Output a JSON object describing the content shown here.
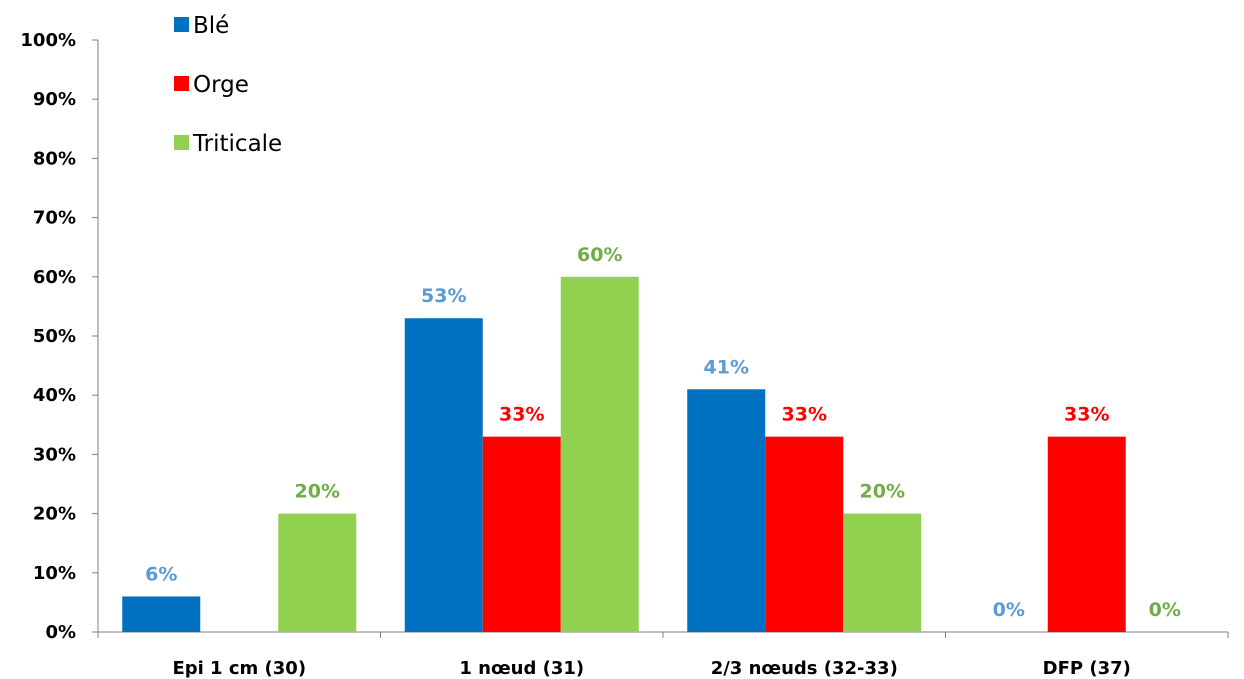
{
  "chart_data": {
    "type": "bar",
    "categories": [
      "Epi 1 cm (30)",
      "1 nœud (31)",
      "2/3 nœuds (32-33)",
      "DFP (37)"
    ],
    "series": [
      {
        "name": "Blé",
        "color": "#0070C0",
        "label_color": "#5B9BD5",
        "values": [
          6,
          53,
          41,
          0
        ],
        "labels": [
          "6%",
          "53%",
          "41%",
          "0%"
        ]
      },
      {
        "name": "Orge",
        "color": "#FF0000",
        "label_color": "#FF0000",
        "values": [
          0,
          33,
          33,
          33
        ],
        "labels": [
          "",
          "33%",
          "33%",
          "33%"
        ]
      },
      {
        "name": "Triticale",
        "color": "#92D050",
        "label_color": "#70AD47",
        "values": [
          20,
          60,
          20,
          0
        ],
        "labels": [
          "20%",
          "60%",
          "20%",
          "0%"
        ]
      }
    ],
    "ylim": [
      0,
      100
    ],
    "yticks": [
      0,
      10,
      20,
      30,
      40,
      50,
      60,
      70,
      80,
      90,
      100
    ],
    "ytick_labels": [
      "0%",
      "10%",
      "20%",
      "30%",
      "40%",
      "50%",
      "60%",
      "70%",
      "80%",
      "90%",
      "100%"
    ],
    "title": "",
    "xlabel": "",
    "ylabel": "",
    "grid": false,
    "legend_position": "top-left"
  }
}
